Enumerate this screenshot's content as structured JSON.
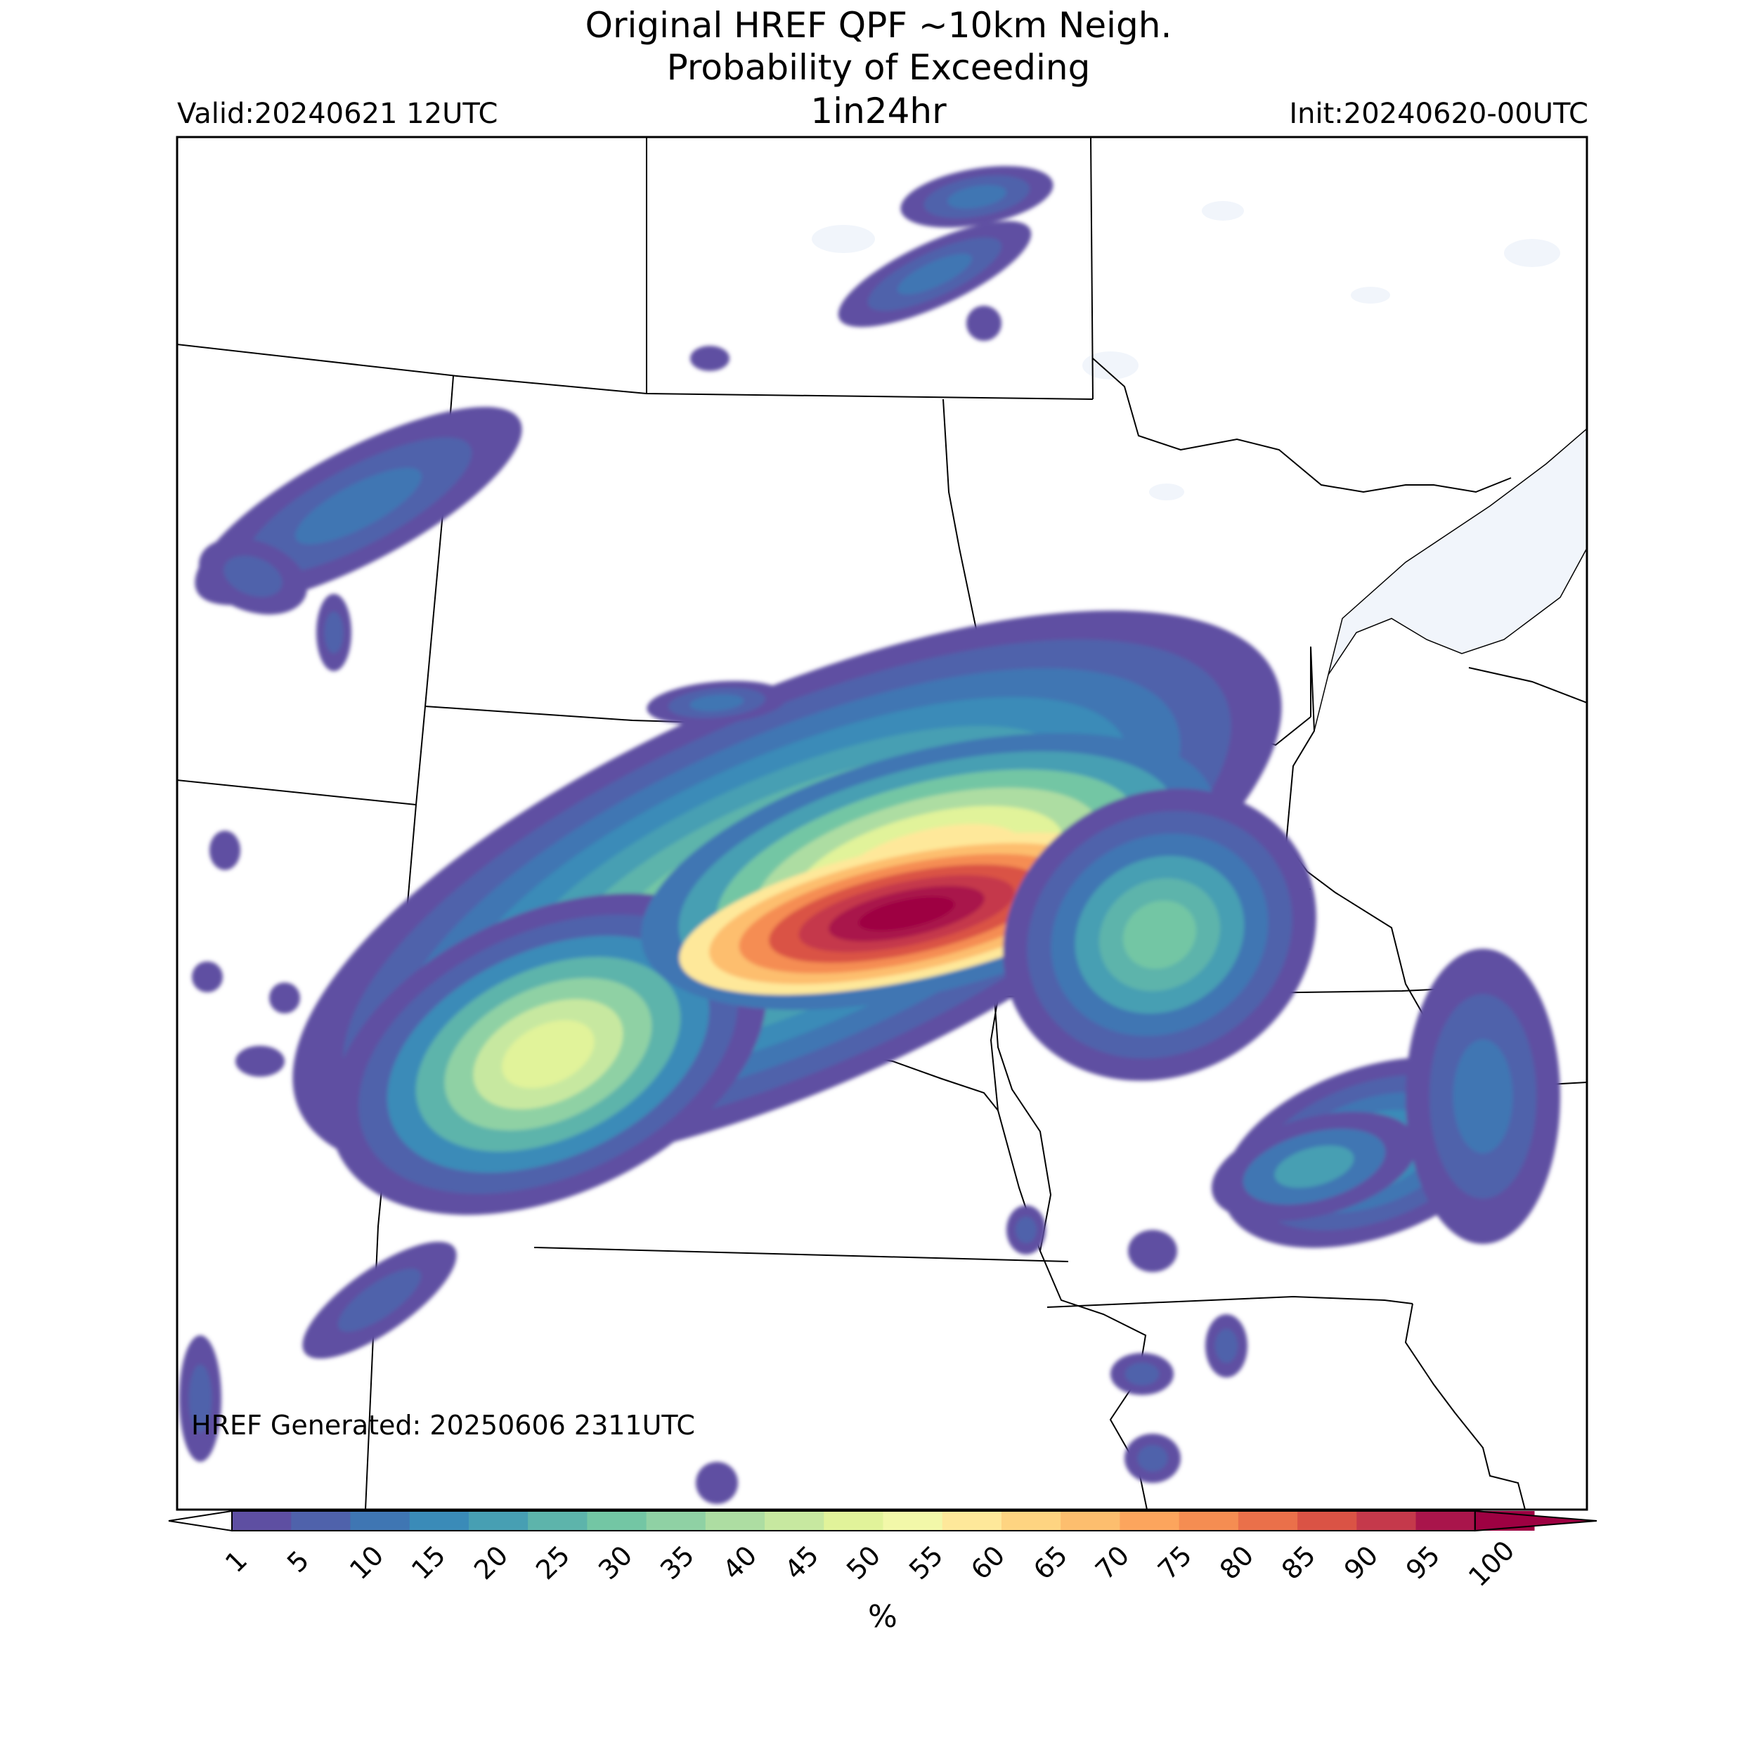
{
  "header": {
    "title_line1": "Original HREF QPF ~10km Neigh.",
    "title_line2": "Probability of Exceeding",
    "title_line3": "1in24hr",
    "valid_label": "Valid:20240621 12UTC",
    "init_label": "Init:20240620-00UTC"
  },
  "footer": {
    "generated_label": "HREF Generated: 20250606 2311UTC"
  },
  "colorbar": {
    "unit": "%",
    "ticks": [
      "1",
      "5",
      "10",
      "15",
      "20",
      "25",
      "30",
      "35",
      "40",
      "45",
      "50",
      "55",
      "60",
      "65",
      "70",
      "75",
      "80",
      "85",
      "90",
      "95",
      "100"
    ],
    "colors": [
      "#5e4fa2",
      "#4f62ab",
      "#3f76b3",
      "#3a8bb8",
      "#479fb3",
      "#5db4ab",
      "#73c6a4",
      "#8fd1a4",
      "#addda2",
      "#c7e8a0",
      "#e1f39a",
      "#f2f8a9",
      "#fee89a",
      "#fed481",
      "#fdbe6e",
      "#fca55d",
      "#f58d52",
      "#ea704a",
      "#da5345",
      "#c5394b",
      "#a9154b",
      "#9e0142"
    ]
  },
  "map_colors": {
    "water": "#f1f5fb",
    "border": "#000000"
  }
}
